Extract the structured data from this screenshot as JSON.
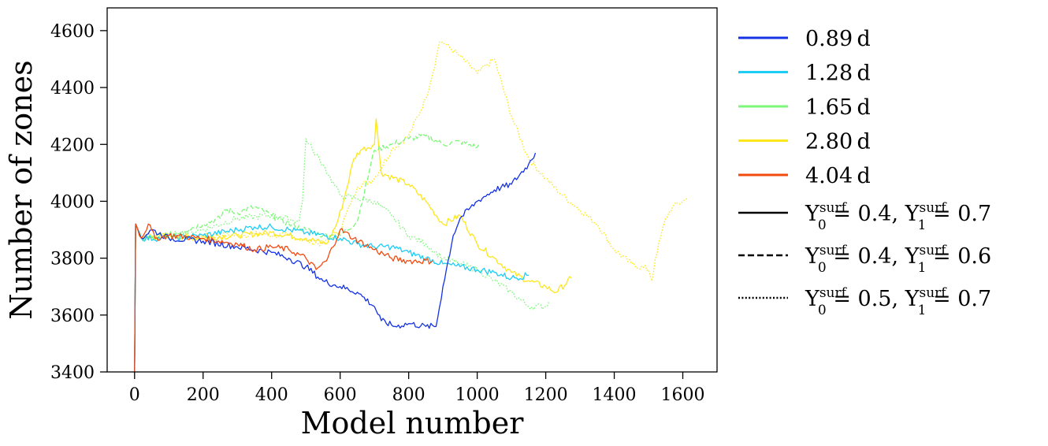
{
  "chart_data": {
    "type": "line",
    "title": "",
    "xlabel": "Model number",
    "ylabel": "Number of zones",
    "xlim": [
      -80,
      1700
    ],
    "ylim": [
      3400,
      4680
    ],
    "xticks": [
      0,
      200,
      400,
      600,
      800,
      1000,
      1200,
      1400,
      1600
    ],
    "yticks": [
      3400,
      3600,
      3800,
      4000,
      4200,
      4400,
      4600
    ],
    "grid": false,
    "legend_position": "outside-right",
    "period_legend": [
      {
        "label": "0.89 d",
        "color": "#1432e6"
      },
      {
        "label": "1.28 d",
        "color": "#1ccdf5"
      },
      {
        "label": "1.65 d",
        "color": "#7df779"
      },
      {
        "label": "2.80 d",
        "color": "#fce61c"
      },
      {
        "label": "4.04 d",
        "color": "#f24a0f"
      }
    ],
    "style_legend": [
      {
        "label": "Y0surf = 0.4, Y1surf = 0.7",
        "linestyle": "solid",
        "parts": {
          "a_base": "Y",
          "a_sup": "surf",
          "a_sub": "0",
          "a_rest": " = 0.4, ",
          "b_base": "Y",
          "b_sup": "surf",
          "b_sub": "1",
          "b_rest": " = 0.7"
        }
      },
      {
        "label": "Y0surf = 0.4, Y1surf = 0.6",
        "linestyle": "dashed",
        "parts": {
          "a_base": "Y",
          "a_sup": "surf",
          "a_sub": "0",
          "a_rest": " = 0.4, ",
          "b_base": "Y",
          "b_sup": "surf",
          "b_sub": "1",
          "b_rest": " = 0.6"
        }
      },
      {
        "label": "Y0surf = 0.5, Y1surf = 0.7",
        "linestyle": "dotted",
        "parts": {
          "a_base": "Y",
          "a_sup": "surf",
          "a_sub": "0",
          "a_rest": " = 0.5, ",
          "b_base": "Y",
          "b_sup": "surf",
          "b_sub": "1",
          "b_rest": " = 0.7"
        }
      }
    ],
    "series": [
      {
        "period": "2.80 d",
        "color": "#fce61c",
        "linestyle": "dotted",
        "x": [
          0,
          3,
          20,
          40,
          60,
          100,
          150,
          200,
          300,
          350,
          400,
          450,
          500,
          550,
          600,
          650,
          700,
          750,
          800,
          850,
          880,
          890,
          900,
          950,
          1000,
          1050,
          1100,
          1150,
          1200,
          1250,
          1300,
          1350,
          1400,
          1450,
          1500,
          1510,
          1520,
          1550,
          1570,
          1600,
          1615
        ],
        "y": [
          3400,
          3920,
          3870,
          3890,
          3870,
          3880,
          3870,
          3880,
          3880,
          3885,
          3880,
          3880,
          3860,
          3850,
          3900,
          4050,
          4080,
          4180,
          4230,
          4360,
          4500,
          4560,
          4560,
          4510,
          4450,
          4500,
          4300,
          4150,
          4080,
          4020,
          3970,
          3920,
          3830,
          3780,
          3760,
          3720,
          3800,
          3940,
          3980,
          4000,
          4010
        ]
      },
      {
        "period": "2.80 d",
        "color": "#fce61c",
        "linestyle": "solid",
        "x": [
          0,
          3,
          20,
          100,
          200,
          300,
          400,
          500,
          560,
          590,
          610,
          640,
          660,
          700,
          705,
          720,
          800,
          850,
          900,
          950,
          1000,
          1050,
          1100,
          1150,
          1200,
          1230,
          1275
        ],
        "y": [
          3400,
          3920,
          3870,
          3880,
          3870,
          3880,
          3890,
          3870,
          3850,
          3920,
          4000,
          4150,
          4180,
          4200,
          4290,
          4100,
          4060,
          4000,
          3920,
          3950,
          3850,
          3800,
          3750,
          3720,
          3700,
          3680,
          3730
        ]
      },
      {
        "period": "1.65 d",
        "color": "#7df779",
        "linestyle": "dashed",
        "x": [
          0,
          3,
          20,
          100,
          200,
          250,
          260,
          300,
          350,
          400,
          450,
          500,
          550,
          600,
          650,
          700,
          750,
          800,
          850,
          900,
          950,
          1000,
          1010
        ],
        "y": [
          3400,
          3920,
          3870,
          3880,
          3920,
          3940,
          3970,
          3960,
          3980,
          3950,
          3920,
          3900,
          3880,
          3880,
          3930,
          4180,
          4200,
          4220,
          4230,
          4200,
          4210,
          4190,
          4200
        ]
      },
      {
        "period": "1.65 d",
        "color": "#7df779",
        "linestyle": "dotted",
        "x": [
          0,
          3,
          20,
          100,
          200,
          300,
          400,
          480,
          490,
          500,
          520,
          550,
          600,
          650,
          700,
          750,
          800,
          850,
          900,
          950,
          1000,
          1050,
          1100,
          1150,
          1200,
          1210
        ],
        "y": [
          3400,
          3920,
          3870,
          3880,
          3900,
          3940,
          3950,
          3930,
          4000,
          4220,
          4180,
          4130,
          4020,
          4010,
          4000,
          3950,
          3880,
          3850,
          3800,
          3780,
          3760,
          3720,
          3680,
          3630,
          3630,
          3650
        ]
      },
      {
        "period": "1.28 d",
        "color": "#1ccdf5",
        "linestyle": "solid",
        "x": [
          0,
          3,
          20,
          100,
          200,
          300,
          350,
          400,
          500,
          600,
          650,
          700,
          750,
          800,
          850,
          900,
          950,
          1000,
          1050,
          1100,
          1150
        ],
        "y": [
          3400,
          3920,
          3870,
          3870,
          3880,
          3900,
          3910,
          3910,
          3890,
          3870,
          3850,
          3840,
          3840,
          3820,
          3800,
          3780,
          3770,
          3760,
          3750,
          3730,
          3740
        ]
      },
      {
        "period": "0.89 d",
        "color": "#1432e6",
        "linestyle": "solid",
        "x": [
          0,
          3,
          20,
          50,
          100,
          200,
          300,
          400,
          450,
          500,
          550,
          600,
          650,
          700,
          720,
          760,
          800,
          850,
          880,
          900,
          930,
          950,
          1000,
          1050,
          1100,
          1150,
          1170
        ],
        "y": [
          3400,
          3920,
          3870,
          3900,
          3870,
          3860,
          3840,
          3820,
          3800,
          3770,
          3720,
          3700,
          3680,
          3630,
          3580,
          3560,
          3570,
          3560,
          3560,
          3700,
          3880,
          3940,
          4000,
          4040,
          4060,
          4130,
          4170
        ]
      },
      {
        "period": "4.04 d",
        "color": "#f24a0f",
        "linestyle": "solid",
        "x": [
          0,
          3,
          20,
          40,
          60,
          100,
          200,
          300,
          350,
          400,
          450,
          500,
          530,
          560,
          600,
          640,
          700,
          750,
          800,
          870
        ],
        "y": [
          3400,
          3920,
          3870,
          3920,
          3870,
          3880,
          3870,
          3850,
          3830,
          3840,
          3830,
          3800,
          3760,
          3790,
          3900,
          3870,
          3830,
          3800,
          3790,
          3790
        ]
      }
    ]
  }
}
